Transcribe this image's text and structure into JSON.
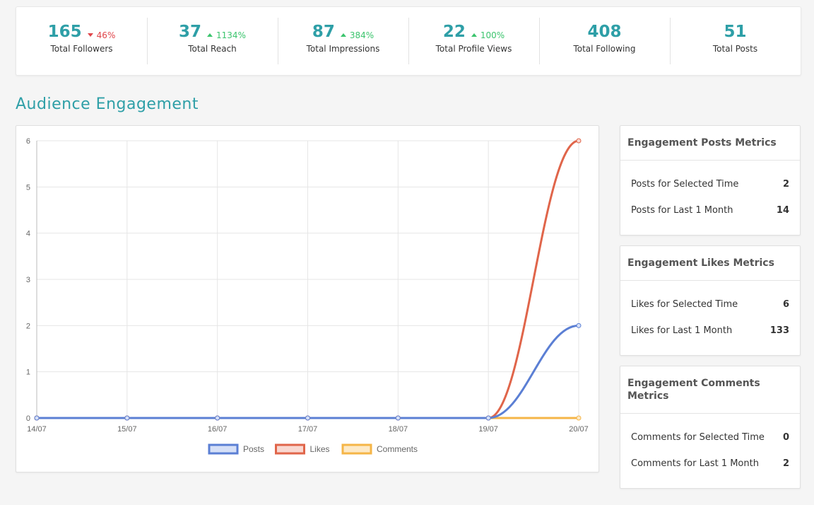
{
  "stats": [
    {
      "value": "165",
      "change": "46%",
      "direction": "down",
      "label": "Total Followers"
    },
    {
      "value": "37",
      "change": "1134%",
      "direction": "up",
      "label": "Total Reach"
    },
    {
      "value": "87",
      "change": "384%",
      "direction": "up",
      "label": "Total Impressions"
    },
    {
      "value": "22",
      "change": "100%",
      "direction": "up",
      "label": "Total Profile Views"
    },
    {
      "value": "408",
      "change": "",
      "direction": "",
      "label": "Total Following"
    },
    {
      "value": "51",
      "change": "",
      "direction": "",
      "label": "Total Posts"
    }
  ],
  "section_title": "Audience Engagement",
  "metrics": {
    "posts": {
      "title": "Engagement Posts Metrics",
      "rows": [
        {
          "label": "Posts for Selected Time",
          "value": "2"
        },
        {
          "label": "Posts for Last 1 Month",
          "value": "14"
        }
      ]
    },
    "likes": {
      "title": "Engagement Likes Metrics",
      "rows": [
        {
          "label": "Likes for Selected Time",
          "value": "6"
        },
        {
          "label": "Likes for Last 1 Month",
          "value": "133"
        }
      ]
    },
    "comments": {
      "title": "Engagement Comments Metrics",
      "rows": [
        {
          "label": "Comments for Selected Time",
          "value": "0"
        },
        {
          "label": "Comments for Last 1 Month",
          "value": "2"
        }
      ]
    }
  },
  "colors": {
    "accent": "#2e9fa7",
    "up": "#3bc46d",
    "down": "#e0454a"
  },
  "chart_data": {
    "type": "line",
    "categories": [
      "14/07",
      "15/07",
      "16/07",
      "17/07",
      "18/07",
      "19/07",
      "20/07"
    ],
    "series": [
      {
        "name": "Posts",
        "values": [
          0,
          0,
          0,
          0,
          0,
          0,
          2
        ],
        "color": "#5b7fd4",
        "fill": "#d6e0f7"
      },
      {
        "name": "Likes",
        "values": [
          0,
          0,
          0,
          0,
          0,
          0,
          6
        ],
        "color": "#e0654a",
        "fill": "#f9d8d1"
      },
      {
        "name": "Comments",
        "values": [
          0,
          0,
          0,
          0,
          0,
          0,
          0
        ],
        "color": "#f5b547",
        "fill": "#fde9c6"
      }
    ],
    "yticks": [
      "0",
      "1",
      "2",
      "3",
      "4",
      "5",
      "6"
    ],
    "ylim": [
      0,
      6
    ],
    "grid": true,
    "legend": "bottom-center",
    "title": "",
    "xlabel": "",
    "ylabel": ""
  }
}
